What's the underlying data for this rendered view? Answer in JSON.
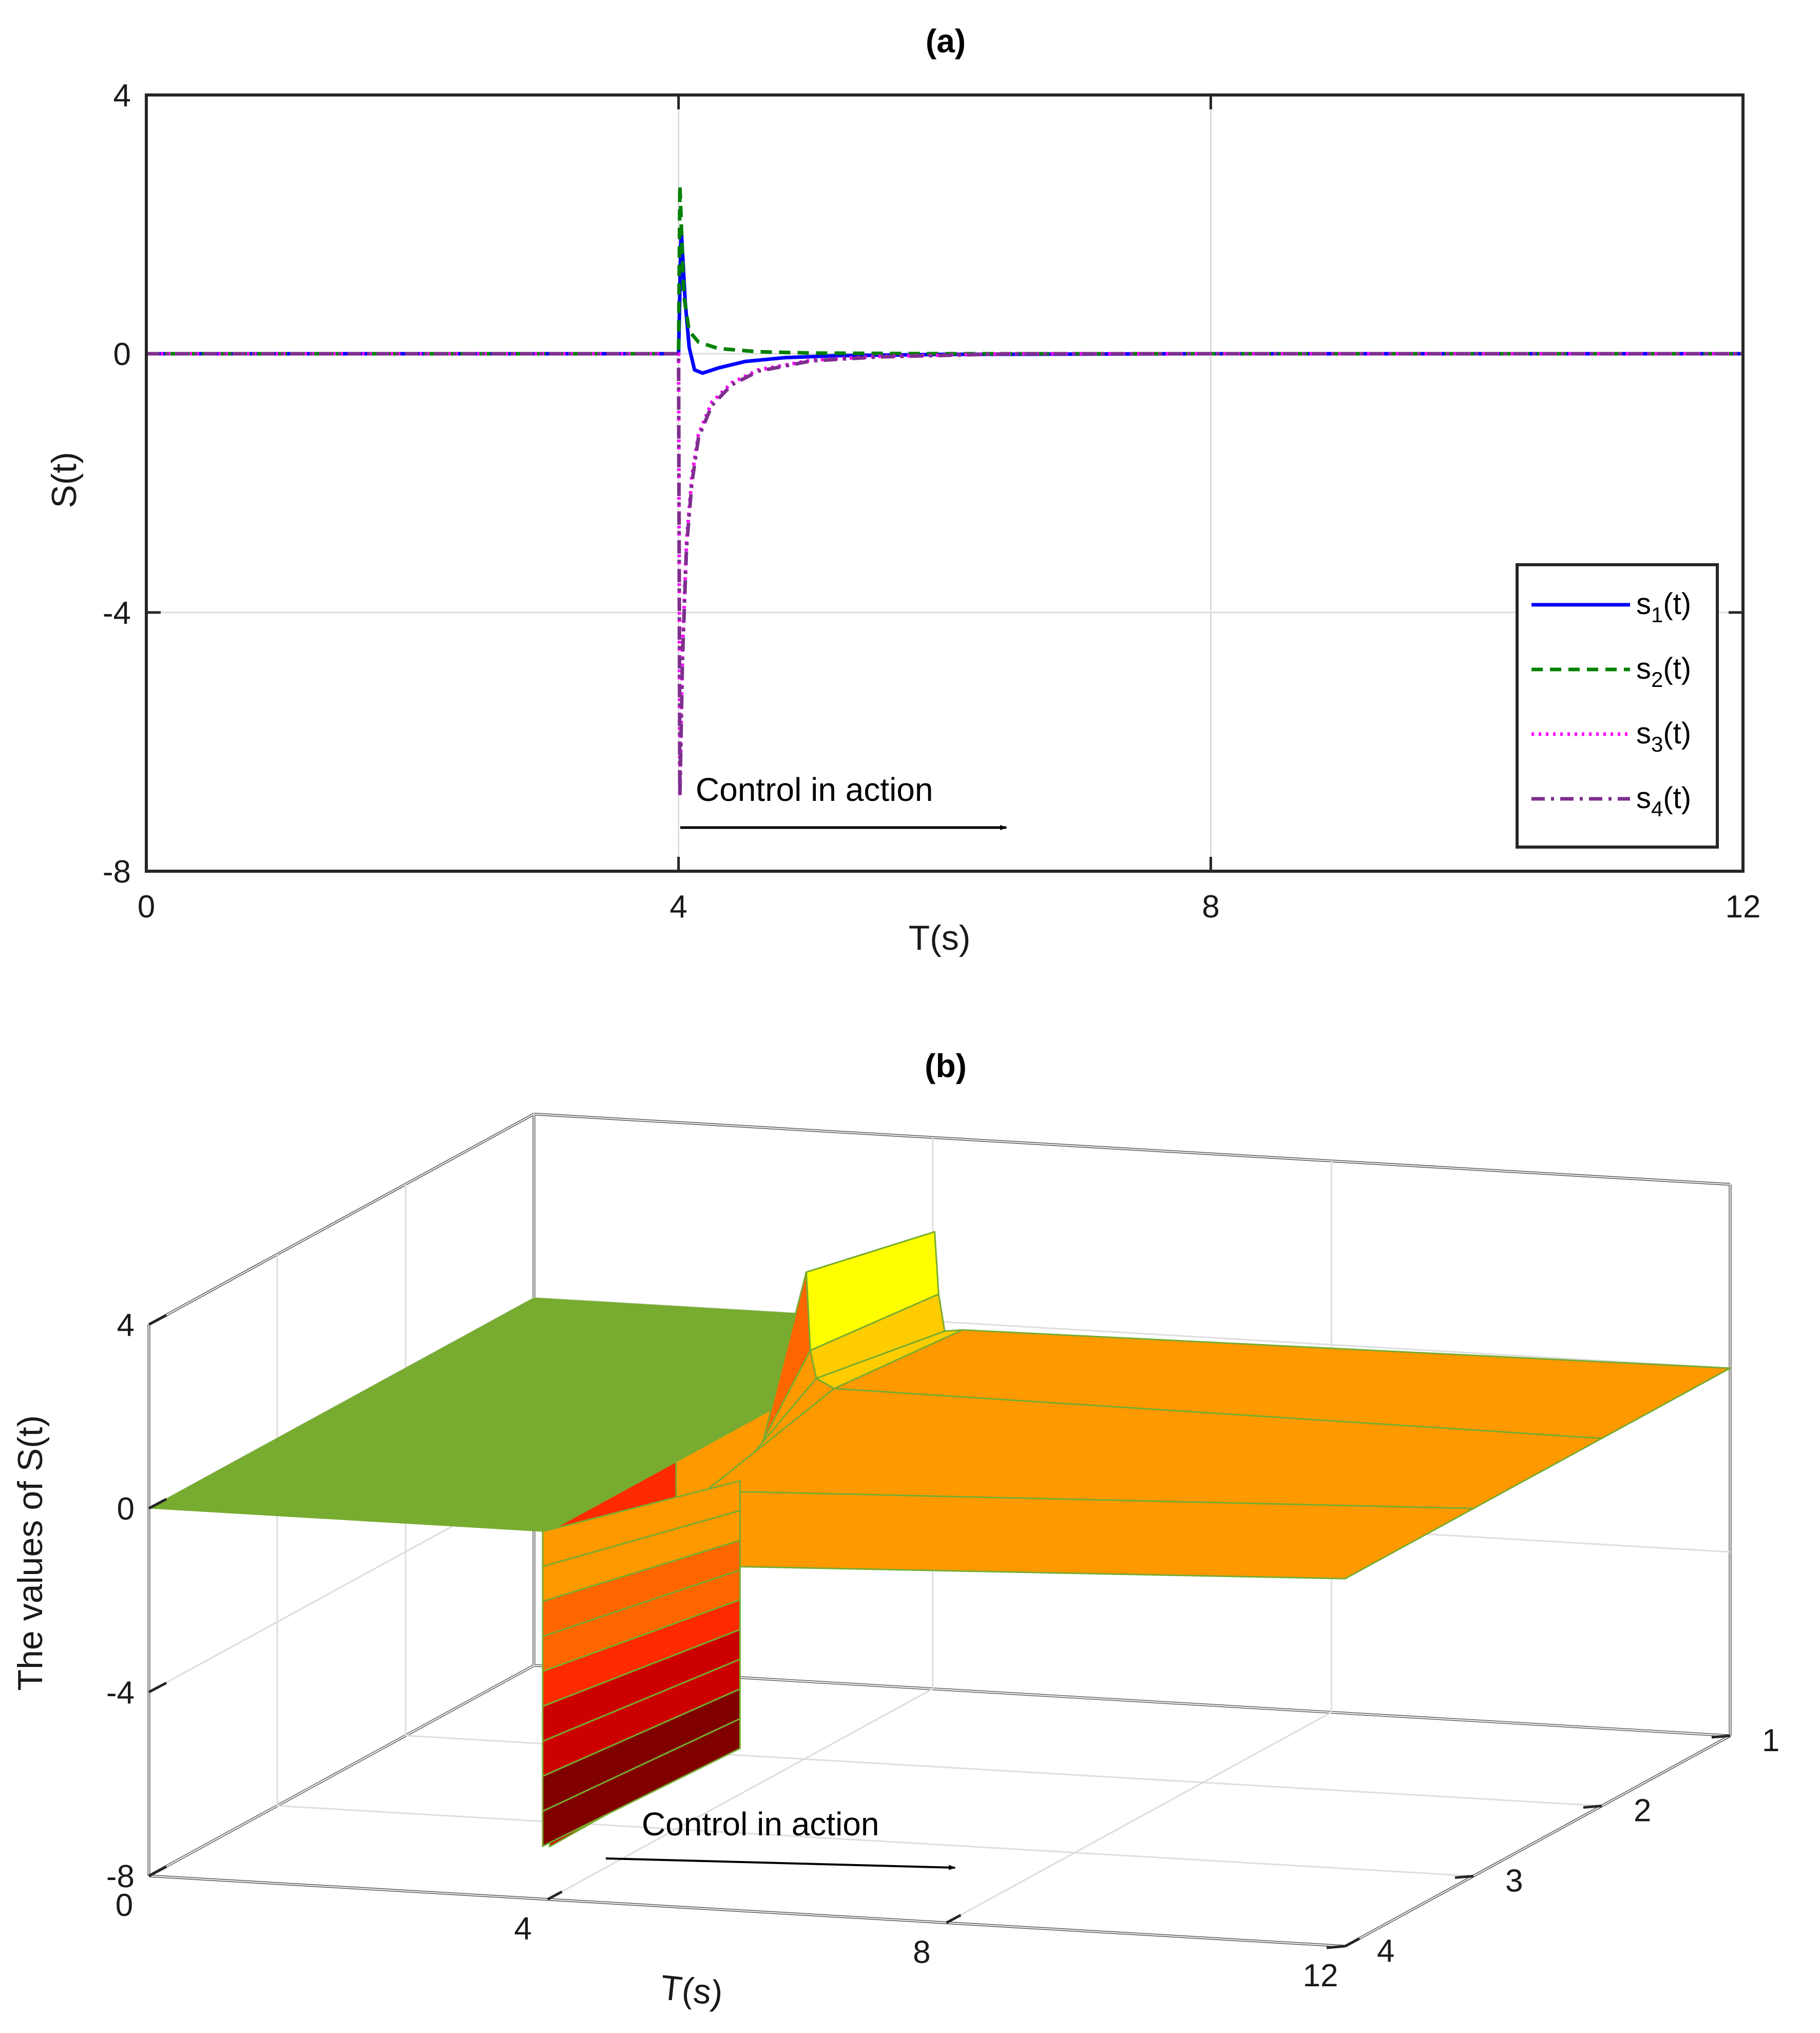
{
  "chart_data": [
    {
      "panel": "a",
      "type": "line",
      "title": "(a)",
      "xlabel": "T(s)",
      "ylabel": "S(t)",
      "xlim": [
        0,
        12
      ],
      "ylim": [
        -8,
        4
      ],
      "xticks": [
        "0",
        "4",
        "8",
        "12"
      ],
      "yticks": [
        "4",
        "0",
        "-4",
        "-8"
      ],
      "grid": true,
      "legend_position": "bottom-right",
      "annotation": "Control in action",
      "series": [
        {
          "name": "s1(t)",
          "base": "s",
          "sub": "1",
          "tail": "(t)",
          "style": "solid",
          "color": "#0000ff",
          "x": [
            0,
            4.0,
            4.02,
            4.05,
            4.08,
            4.12,
            4.18,
            4.3,
            4.5,
            4.8,
            5.2,
            6.0,
            8.0,
            12.0
          ],
          "y": [
            0,
            0,
            1.95,
            0.8,
            0.1,
            -0.25,
            -0.3,
            -0.22,
            -0.12,
            -0.06,
            -0.03,
            -0.01,
            0,
            0
          ]
        },
        {
          "name": "s2(t)",
          "base": "s",
          "sub": "2",
          "tail": "(t)",
          "style": "dashed",
          "color": "#008000",
          "x": [
            0,
            4.0,
            4.01,
            4.04,
            4.08,
            4.15,
            4.3,
            4.6,
            5.0,
            6.0,
            12.0
          ],
          "y": [
            0,
            0,
            2.6,
            0.9,
            0.35,
            0.18,
            0.08,
            0.03,
            0.01,
            0,
            0
          ]
        },
        {
          "name": "s3(t)",
          "base": "s",
          "sub": "3",
          "tail": "(t)",
          "style": "dotted",
          "color": "#ff00ff",
          "x": [
            0,
            4.0,
            4.01,
            4.03,
            4.06,
            4.1,
            4.15,
            4.25,
            4.4,
            4.6,
            5.0,
            5.5,
            6.5,
            12.0
          ],
          "y": [
            0,
            0,
            -6.8,
            -4.6,
            -2.9,
            -1.9,
            -1.25,
            -0.75,
            -0.45,
            -0.25,
            -0.1,
            -0.04,
            0,
            0
          ]
        },
        {
          "name": "s4(t)",
          "base": "s",
          "sub": "4",
          "tail": "(t)",
          "style": "dashdot",
          "color": "#7e2f8e",
          "x": [
            0,
            4.0,
            4.01,
            4.03,
            4.06,
            4.1,
            4.15,
            4.25,
            4.4,
            4.6,
            5.0,
            5.5,
            6.5,
            12.0
          ],
          "y": [
            0,
            0,
            -6.85,
            -4.7,
            -3.0,
            -2.0,
            -1.3,
            -0.8,
            -0.48,
            -0.27,
            -0.11,
            -0.05,
            0,
            0
          ]
        }
      ]
    },
    {
      "panel": "b",
      "type": "surface3d",
      "title": "(b)",
      "xlabel": "T(s)",
      "zlabel": "The values of S(t)",
      "xlim": [
        0,
        12
      ],
      "ylim": [
        1,
        4
      ],
      "zlim": [
        -8,
        4
      ],
      "xticks": [
        "0",
        "4",
        "8",
        "12"
      ],
      "yticks": [
        "1",
        "2",
        "3",
        "4"
      ],
      "zticks": [
        "4",
        "0",
        "-4",
        "-8"
      ],
      "annotation": "Control in action",
      "surface_color": "#77ac30",
      "colormap": [
        "#000000",
        "#800000",
        "#cc0000",
        "#ff2a00",
        "#ff6600",
        "#ff9900",
        "#ffcc00",
        "#ffff00",
        "#ffff99"
      ],
      "rows": [
        {
          "row": 1,
          "x": [
            0,
            4.0,
            4.02,
            4.06,
            4.12,
            4.3,
            12.0
          ],
          "z": [
            0,
            0,
            1.95,
            0.6,
            -0.2,
            -0.15,
            0
          ]
        },
        {
          "row": 2,
          "x": [
            0,
            4.0,
            4.02,
            4.06,
            4.12,
            4.3,
            12.0
          ],
          "z": [
            0,
            0,
            2.6,
            0.9,
            0.3,
            0.1,
            0
          ]
        },
        {
          "row": 3,
          "x": [
            0,
            4.0,
            4.02,
            4.06,
            4.12,
            4.3,
            12.0
          ],
          "z": [
            0,
            0,
            -6.8,
            -2.9,
            -1.5,
            -0.6,
            0
          ]
        },
        {
          "row": 4,
          "x": [
            0,
            4.0,
            4.02,
            4.06,
            4.12,
            4.3,
            12.0
          ],
          "z": [
            0,
            0,
            -6.85,
            -3.0,
            -1.6,
            -0.65,
            0
          ]
        }
      ]
    }
  ]
}
